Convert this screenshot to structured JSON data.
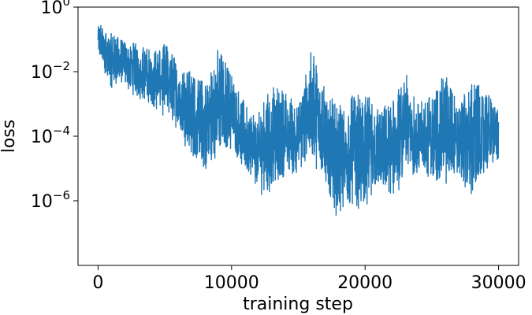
{
  "chart_data": {
    "type": "line",
    "title": "",
    "xlabel": "training step",
    "ylabel": "loss",
    "xlim": [
      -1500,
      31500
    ],
    "ylim": [
      1e-08,
      1
    ],
    "y_scale": "log",
    "grid": false,
    "legend": "none",
    "x_ticks": [
      {
        "value": 0,
        "label": "0"
      },
      {
        "value": 10000,
        "label": "10000"
      },
      {
        "value": 20000,
        "label": "20000"
      },
      {
        "value": 30000,
        "label": "30000"
      }
    ],
    "y_ticks": [
      {
        "value": 1,
        "base": "10",
        "exp": "0"
      },
      {
        "value": 0.01,
        "base": "10",
        "exp": "−2"
      },
      {
        "value": 0.0001,
        "base": "10",
        "exp": "−4"
      },
      {
        "value": 1e-06,
        "base": "10",
        "exp": "−6"
      }
    ],
    "series": [
      {
        "color": "#1f77b4",
        "x": [
          0,
          1000,
          2000,
          3000,
          4000,
          5000,
          6000,
          7000,
          8000,
          9000,
          10000,
          11000,
          12000,
          13000,
          14000,
          15000,
          16000,
          17000,
          18000,
          19000,
          20000,
          21000,
          22000,
          23000,
          24000,
          25000,
          26000,
          27000,
          28000,
          29000,
          30000
        ],
        "y_high": [
          0.4,
          0.15,
          0.1,
          0.07,
          0.05,
          0.08,
          0.02,
          0.01,
          0.005,
          0.06,
          0.01,
          0.001,
          0.0005,
          0.004,
          0.003,
          0.001,
          0.05,
          0.003,
          0.0008,
          0.002,
          0.002,
          0.001,
          0.001,
          0.01,
          0.001,
          0.002,
          0.01,
          0.001,
          0.005,
          0.003,
          0.0007
        ],
        "y_low": [
          0.02,
          0.002,
          0.002,
          0.001,
          0.0005,
          0.0002,
          0.0001,
          1e-05,
          3e-06,
          1e-05,
          2e-05,
          3e-06,
          1e-06,
          5e-07,
          2e-06,
          4e-06,
          1e-05,
          1e-06,
          1e-07,
          2e-07,
          1e-07,
          1e-06,
          4e-07,
          2e-06,
          3e-06,
          2e-06,
          1e-06,
          3e-06,
          3e-07,
          3e-06,
          1e-05
        ]
      }
    ]
  }
}
